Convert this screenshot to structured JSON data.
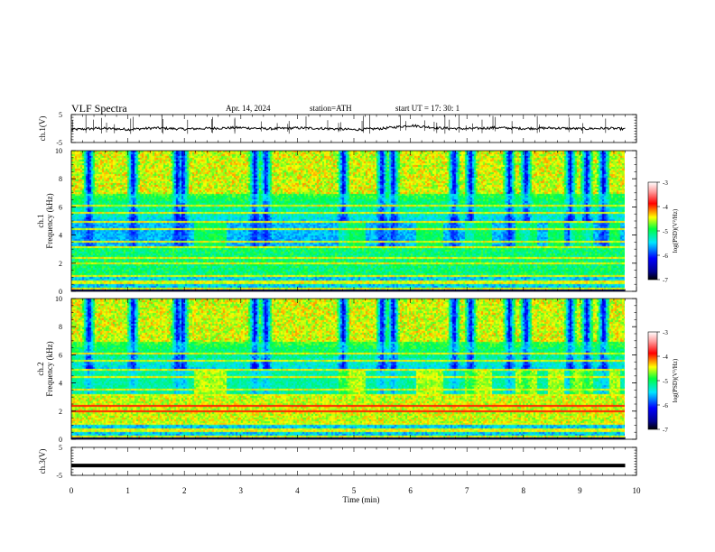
{
  "header": {
    "title": "VLF  Spectra",
    "date": "Apr. 14, 2024",
    "station": "station=ATH",
    "start": "start  UT  =    17: 30: 1"
  },
  "chart_data": [
    {
      "type": "line",
      "panel": "ch1-voltage",
      "ylabel": "ch.1(V)",
      "ylim": [
        -5,
        5
      ],
      "yticks": [
        "5",
        "-5"
      ],
      "xlim": [
        0,
        10
      ],
      "x": [
        0,
        0.5,
        1,
        1.5,
        2,
        2.5,
        3,
        3.5,
        4,
        4.5,
        5,
        5.5,
        6,
        6.5,
        7,
        7.5,
        8,
        8.5,
        9,
        9.5,
        9.8
      ],
      "values": [
        -0.4,
        0.1,
        -0.3,
        0.2,
        -0.2,
        0.1,
        0.3,
        -0.1,
        0.2,
        0.0,
        -0.4,
        0.0,
        1.1,
        0.2,
        -0.1,
        0.3,
        0.0,
        0.2,
        -0.1,
        0.1,
        -0.2
      ]
    },
    {
      "type": "heatmap",
      "panel": "ch1-spectrogram",
      "ylabel": "ch.1\nFrequency  (kHz)",
      "ylim": [
        0,
        10
      ],
      "yticks": [
        "0",
        "2",
        "4",
        "6",
        "8",
        "10"
      ],
      "colorbar_label": "log(PSD)(V²/Hz)",
      "colorbar_range": [
        -7,
        -3
      ],
      "colorbar_ticks": [
        "-3",
        "-4",
        "-5",
        "-6",
        "-7"
      ]
    },
    {
      "type": "heatmap",
      "panel": "ch2-spectrogram",
      "ylabel": "ch.2\nFrequency  (kHz)",
      "ylim": [
        0,
        10
      ],
      "yticks": [
        "0",
        "2",
        "4",
        "6",
        "8",
        "10"
      ],
      "colorbar_label": "log(PSD)(V²/Hz)",
      "colorbar_range": [
        -7,
        -3
      ],
      "colorbar_ticks": [
        "-3",
        "-4",
        "-5",
        "-6",
        "-7"
      ]
    },
    {
      "type": "line",
      "panel": "ch3-voltage",
      "ylabel": "ch.3(V)",
      "ylim": [
        -5,
        5
      ],
      "yticks": [
        "5",
        "-5"
      ],
      "xlim": [
        0,
        10
      ],
      "x": [
        0,
        9.8
      ],
      "values": [
        -1.5,
        -1.5
      ]
    }
  ],
  "x_axis": {
    "label": "Time  (min)",
    "ticks": [
      "0",
      "1",
      "2",
      "3",
      "4",
      "5",
      "6",
      "7",
      "8",
      "9",
      "10"
    ],
    "range": [
      0,
      10
    ]
  },
  "colors": {
    "ch1_trace": "#000000",
    "ch3_trace": "#000000"
  }
}
